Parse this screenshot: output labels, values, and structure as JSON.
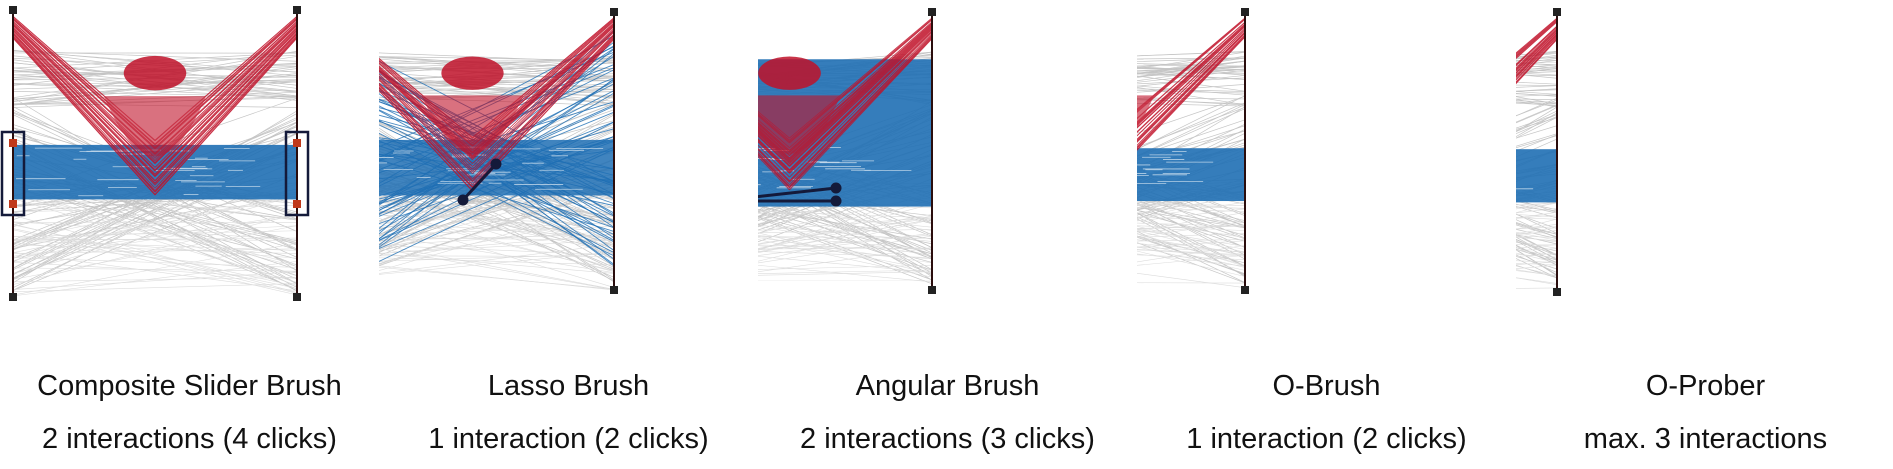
{
  "panels": [
    {
      "title": "Composite Slider Brush",
      "subtitle": "2 interactions (4 clicks)",
      "technique": "composite-slider"
    },
    {
      "title": "Lasso Brush",
      "subtitle": "1 interaction (2 clicks)",
      "technique": "lasso"
    },
    {
      "title": "Angular Brush",
      "subtitle": "2 interactions (3 clicks)",
      "technique": "angular"
    },
    {
      "title": "O-Brush",
      "subtitle": "1 interaction (2 clicks)",
      "technique": "o-brush"
    },
    {
      "title": "O-Prober",
      "subtitle": "max. 3 interactions",
      "technique": "o-prober"
    }
  ],
  "colors": {
    "context": "#8c8c8c",
    "selected": "#1f6fb4",
    "highlight": "#c0122a",
    "axis": "#2a0d0d",
    "handle": "#c0391b",
    "brush_outline": "#141a3a"
  }
}
